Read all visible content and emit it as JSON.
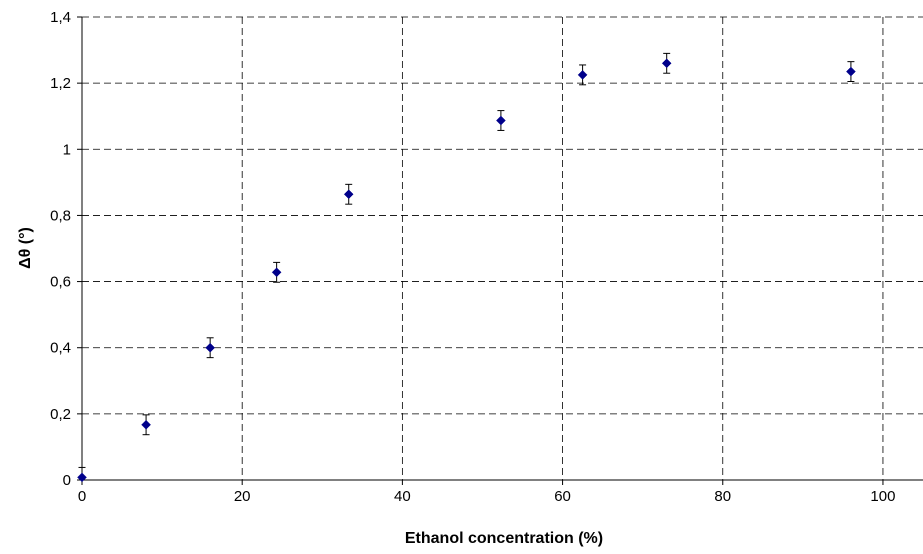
{
  "chart_data": {
    "type": "scatter",
    "xlabel": "Ethanol concentration (%)",
    "ylabel": "Δθ (°)",
    "xlim": [
      0,
      105
    ],
    "ylim": [
      0,
      1.4
    ],
    "x_ticks": [
      0,
      20,
      40,
      60,
      80,
      100
    ],
    "y_ticks": [
      0,
      0.2,
      0.4,
      0.6,
      0.8,
      1,
      1.2,
      1.4
    ],
    "x_tick_labels": [
      "0",
      "20",
      "40",
      "60",
      "80",
      "100"
    ],
    "y_tick_labels": [
      "0",
      "0,2",
      "0,4",
      "0,6",
      "0,8",
      "1",
      "1,2",
      "1,4"
    ],
    "grid": true,
    "marker": "diamond",
    "marker_color": "#00008B",
    "series": [
      {
        "x": [
          0,
          8,
          16,
          24.3,
          33.3,
          52.3,
          62.5,
          73,
          96
        ],
        "y": [
          0.008,
          0.167,
          0.4,
          0.628,
          0.864,
          1.087,
          1.225,
          1.26,
          1.235
        ],
        "error": [
          0.03,
          0.03,
          0.03,
          0.03,
          0.03,
          0.03,
          0.03,
          0.03,
          0.03
        ]
      }
    ]
  }
}
